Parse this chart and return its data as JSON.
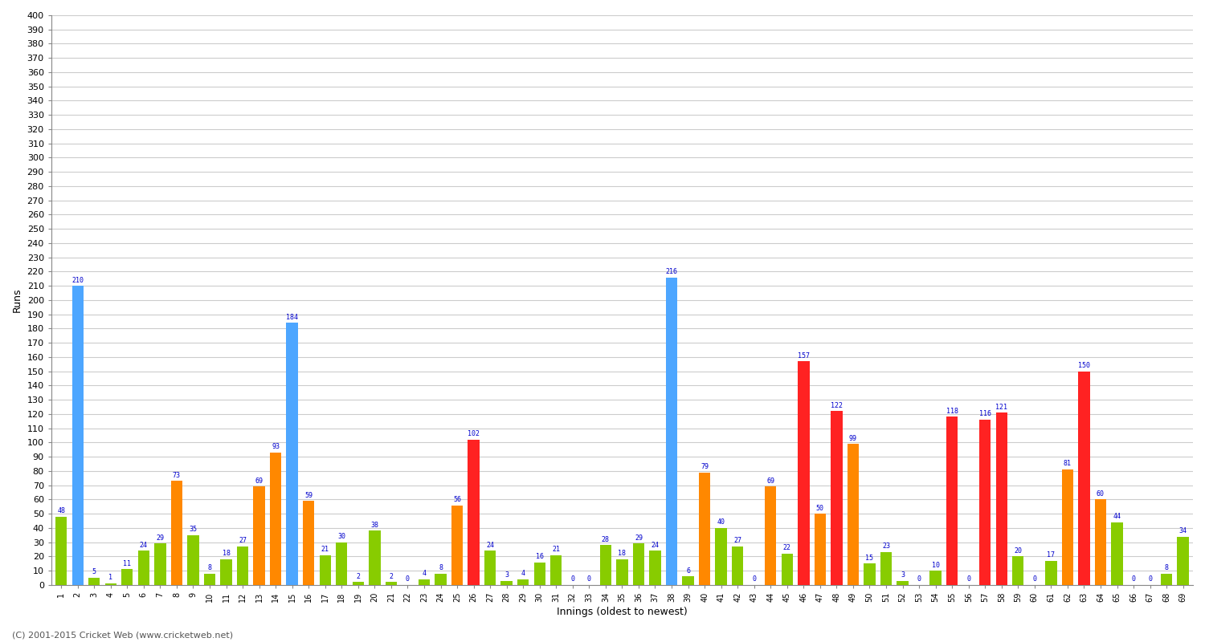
{
  "innings": [
    1,
    2,
    3,
    4,
    5,
    6,
    7,
    8,
    9,
    10,
    11,
    12,
    13,
    14,
    15,
    16,
    17,
    18,
    19,
    20,
    21,
    22,
    23,
    24,
    25,
    26,
    27,
    28,
    29,
    30,
    31,
    32,
    33,
    34,
    35,
    36,
    37,
    38,
    39,
    40,
    41,
    42,
    43,
    44,
    45,
    46,
    47,
    48,
    49,
    50,
    51,
    52,
    53,
    54,
    55,
    56,
    57,
    58,
    59,
    60,
    61,
    62,
    63,
    64,
    65,
    66,
    67,
    68,
    69
  ],
  "scores": [
    48,
    210,
    5,
    1,
    11,
    24,
    29,
    73,
    35,
    8,
    18,
    27,
    69,
    93,
    184,
    59,
    21,
    30,
    2,
    38,
    2,
    0,
    4,
    8,
    56,
    102,
    24,
    3,
    4,
    16,
    21,
    0,
    0,
    28,
    18,
    29,
    24,
    216,
    6,
    79,
    40,
    27,
    0,
    69,
    22,
    157,
    50,
    122,
    99,
    15,
    23,
    3,
    0,
    10,
    118,
    0,
    116,
    121,
    20,
    0,
    17,
    81,
    150,
    60,
    44,
    0,
    0,
    8,
    34
  ],
  "not_out_flags": [
    false,
    true,
    false,
    false,
    false,
    false,
    false,
    false,
    false,
    false,
    false,
    false,
    false,
    false,
    true,
    false,
    false,
    false,
    false,
    false,
    false,
    false,
    false,
    false,
    false,
    false,
    false,
    false,
    false,
    false,
    false,
    false,
    false,
    false,
    false,
    false,
    false,
    true,
    false,
    false,
    false,
    false,
    false,
    false,
    false,
    false,
    false,
    false,
    false,
    false,
    false,
    false,
    false,
    false,
    false,
    false,
    false,
    false,
    false,
    false,
    false,
    false,
    false,
    false,
    false,
    false,
    false,
    false,
    false
  ],
  "blue_color": "#4DA6FF",
  "red_color": "#FF2222",
  "orange_color": "#FF8800",
  "green_color": "#88CC00",
  "ylabel": "Runs",
  "xlabel": "Innings (oldest to newest)",
  "ylim": [
    0,
    400
  ],
  "ytick_step": 10,
  "bg_color": "#FFFFFF",
  "grid_color": "#CCCCCC",
  "footer": "(C) 2001-2015 Cricket Web (www.cricketweb.net)"
}
